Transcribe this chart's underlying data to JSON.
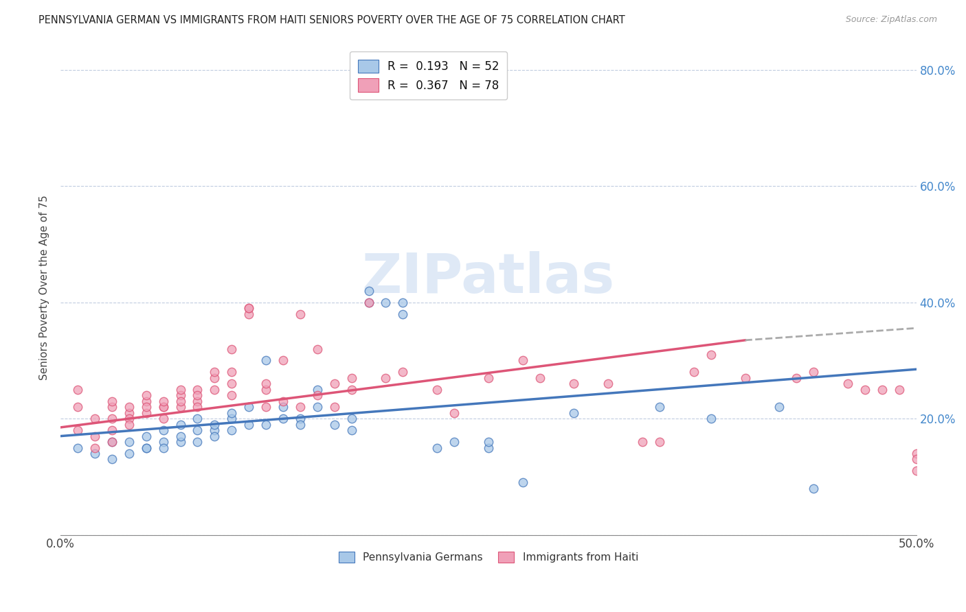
{
  "title": "PENNSYLVANIA GERMAN VS IMMIGRANTS FROM HAITI SENIORS POVERTY OVER THE AGE OF 75 CORRELATION CHART",
  "source": "Source: ZipAtlas.com",
  "ylabel": "Seniors Poverty Over the Age of 75",
  "xlim": [
    0.0,
    0.5
  ],
  "ylim": [
    0.0,
    0.85
  ],
  "yticks": [
    0.0,
    0.2,
    0.4,
    0.6,
    0.8
  ],
  "xticks": [
    0.0,
    0.1,
    0.2,
    0.3,
    0.4,
    0.5
  ],
  "color_blue": "#a8c8e8",
  "color_pink": "#f0a0b8",
  "trend_blue": "#4477bb",
  "trend_pink": "#dd5577",
  "trend_dash": "#aaaaaa",
  "watermark": "ZIPatlas",
  "pg_x": [
    0.01,
    0.02,
    0.03,
    0.03,
    0.04,
    0.04,
    0.05,
    0.05,
    0.05,
    0.06,
    0.06,
    0.06,
    0.07,
    0.07,
    0.07,
    0.08,
    0.08,
    0.08,
    0.09,
    0.09,
    0.09,
    0.1,
    0.1,
    0.1,
    0.11,
    0.11,
    0.12,
    0.12,
    0.13,
    0.13,
    0.14,
    0.14,
    0.15,
    0.15,
    0.16,
    0.17,
    0.17,
    0.18,
    0.18,
    0.19,
    0.2,
    0.2,
    0.22,
    0.23,
    0.25,
    0.25,
    0.27,
    0.3,
    0.35,
    0.38,
    0.42,
    0.44
  ],
  "pg_y": [
    0.15,
    0.14,
    0.13,
    0.16,
    0.14,
    0.16,
    0.15,
    0.17,
    0.15,
    0.16,
    0.15,
    0.18,
    0.16,
    0.19,
    0.17,
    0.18,
    0.16,
    0.2,
    0.18,
    0.19,
    0.17,
    0.18,
    0.2,
    0.21,
    0.19,
    0.22,
    0.19,
    0.3,
    0.22,
    0.2,
    0.2,
    0.19,
    0.22,
    0.25,
    0.19,
    0.18,
    0.2,
    0.4,
    0.42,
    0.4,
    0.38,
    0.4,
    0.15,
    0.16,
    0.15,
    0.16,
    0.09,
    0.21,
    0.22,
    0.2,
    0.22,
    0.08
  ],
  "haiti_x": [
    0.01,
    0.01,
    0.01,
    0.02,
    0.02,
    0.02,
    0.03,
    0.03,
    0.03,
    0.03,
    0.03,
    0.04,
    0.04,
    0.04,
    0.04,
    0.05,
    0.05,
    0.05,
    0.05,
    0.06,
    0.06,
    0.06,
    0.06,
    0.07,
    0.07,
    0.07,
    0.07,
    0.08,
    0.08,
    0.08,
    0.08,
    0.09,
    0.09,
    0.09,
    0.1,
    0.1,
    0.1,
    0.1,
    0.11,
    0.11,
    0.11,
    0.12,
    0.12,
    0.12,
    0.13,
    0.13,
    0.14,
    0.14,
    0.15,
    0.15,
    0.16,
    0.16,
    0.17,
    0.17,
    0.18,
    0.19,
    0.2,
    0.22,
    0.23,
    0.25,
    0.27,
    0.28,
    0.3,
    0.32,
    0.34,
    0.35,
    0.37,
    0.38,
    0.4,
    0.43,
    0.44,
    0.46,
    0.47,
    0.48,
    0.49,
    0.5,
    0.5,
    0.5
  ],
  "haiti_y": [
    0.22,
    0.18,
    0.25,
    0.2,
    0.17,
    0.15,
    0.22,
    0.2,
    0.18,
    0.16,
    0.23,
    0.21,
    0.2,
    0.19,
    0.22,
    0.21,
    0.23,
    0.22,
    0.24,
    0.22,
    0.22,
    0.23,
    0.2,
    0.24,
    0.22,
    0.23,
    0.25,
    0.23,
    0.25,
    0.22,
    0.24,
    0.25,
    0.27,
    0.28,
    0.26,
    0.28,
    0.24,
    0.32,
    0.38,
    0.39,
    0.39,
    0.25,
    0.26,
    0.22,
    0.23,
    0.3,
    0.22,
    0.38,
    0.24,
    0.32,
    0.22,
    0.26,
    0.27,
    0.25,
    0.4,
    0.27,
    0.28,
    0.25,
    0.21,
    0.27,
    0.3,
    0.27,
    0.26,
    0.26,
    0.16,
    0.16,
    0.28,
    0.31,
    0.27,
    0.27,
    0.28,
    0.26,
    0.25,
    0.25,
    0.25,
    0.11,
    0.14,
    0.13
  ]
}
